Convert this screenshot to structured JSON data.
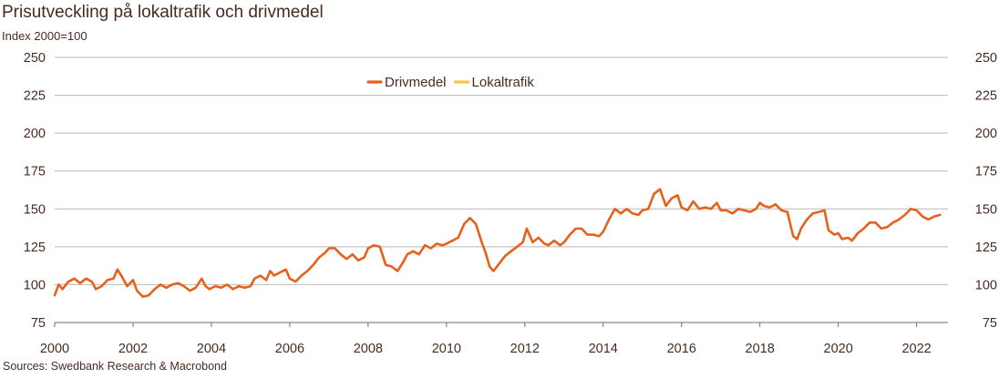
{
  "header": {
    "title": "Prisutveckling på lokaltrafik och drivmedel",
    "subtitle": "Index 2000=100"
  },
  "footer": {
    "source": "Sources: Swedbank Research & Macrobond"
  },
  "colors": {
    "drivmedel": "#e8601c",
    "lokaltrafik": "#f6c73f",
    "grid": "#b9b9b9",
    "text": "#4a2a1f"
  },
  "chart_data": {
    "type": "line",
    "title": "Prisutveckling på lokaltrafik och drivmedel",
    "ylabel": "Index 2000=100",
    "xlim": [
      2000,
      2022.8
    ],
    "ylim": [
      75,
      250
    ],
    "y_ticks": [
      "75",
      "100",
      "125",
      "150",
      "175",
      "200",
      "225",
      "250"
    ],
    "x_ticks": [
      "2000",
      "2002",
      "2004",
      "2006",
      "2008",
      "2010",
      "2012",
      "2014",
      "2016",
      "2018",
      "2020",
      "2022"
    ],
    "grid": true,
    "legend_position": "top-center",
    "series": [
      {
        "name": "Drivmedel",
        "color": "#e8601c",
        "points": [
          [
            2000.0,
            93
          ],
          [
            2000.1,
            100
          ],
          [
            2000.2,
            97
          ],
          [
            2000.35,
            102
          ],
          [
            2000.5,
            104
          ],
          [
            2000.65,
            101
          ],
          [
            2000.8,
            104
          ],
          [
            2000.95,
            102
          ],
          [
            2001.05,
            97
          ],
          [
            2001.2,
            99
          ],
          [
            2001.35,
            103
          ],
          [
            2001.5,
            104
          ],
          [
            2001.6,
            110
          ],
          [
            2001.7,
            106
          ],
          [
            2001.85,
            99
          ],
          [
            2002.0,
            103
          ],
          [
            2002.1,
            96
          ],
          [
            2002.25,
            92
          ],
          [
            2002.4,
            93
          ],
          [
            2002.55,
            97
          ],
          [
            2002.7,
            100
          ],
          [
            2002.85,
            98
          ],
          [
            2003.0,
            100
          ],
          [
            2003.15,
            101
          ],
          [
            2003.3,
            99
          ],
          [
            2003.45,
            96
          ],
          [
            2003.6,
            98
          ],
          [
            2003.75,
            104
          ],
          [
            2003.85,
            99
          ],
          [
            2003.95,
            97
          ],
          [
            2004.1,
            99
          ],
          [
            2004.25,
            98
          ],
          [
            2004.4,
            100
          ],
          [
            2004.55,
            97
          ],
          [
            2004.7,
            99
          ],
          [
            2004.85,
            98
          ],
          [
            2005.0,
            99
          ],
          [
            2005.1,
            104
          ],
          [
            2005.25,
            106
          ],
          [
            2005.4,
            103
          ],
          [
            2005.5,
            109
          ],
          [
            2005.6,
            106
          ],
          [
            2005.75,
            108
          ],
          [
            2005.9,
            110
          ],
          [
            2006.0,
            104
          ],
          [
            2006.15,
            102
          ],
          [
            2006.3,
            106
          ],
          [
            2006.45,
            109
          ],
          [
            2006.6,
            113
          ],
          [
            2006.75,
            118
          ],
          [
            2006.9,
            121
          ],
          [
            2007.0,
            124
          ],
          [
            2007.15,
            124
          ],
          [
            2007.3,
            120
          ],
          [
            2007.45,
            117
          ],
          [
            2007.6,
            120
          ],
          [
            2007.75,
            116
          ],
          [
            2007.9,
            118
          ],
          [
            2008.0,
            124
          ],
          [
            2008.15,
            126
          ],
          [
            2008.3,
            125
          ],
          [
            2008.45,
            113
          ],
          [
            2008.6,
            112
          ],
          [
            2008.75,
            109
          ],
          [
            2008.9,
            115
          ],
          [
            2009.0,
            120
          ],
          [
            2009.15,
            122
          ],
          [
            2009.3,
            120
          ],
          [
            2009.45,
            126
          ],
          [
            2009.6,
            124
          ],
          [
            2009.75,
            127
          ],
          [
            2009.9,
            126
          ],
          [
            2010.0,
            127
          ],
          [
            2010.15,
            129
          ],
          [
            2010.3,
            131
          ],
          [
            2010.45,
            140
          ],
          [
            2010.6,
            144
          ],
          [
            2010.75,
            140
          ],
          [
            2010.9,
            128
          ],
          [
            2011.0,
            121
          ],
          [
            2011.1,
            112
          ],
          [
            2011.2,
            109
          ],
          [
            2011.35,
            114
          ],
          [
            2011.5,
            119
          ],
          [
            2011.65,
            122
          ],
          [
            2011.8,
            125
          ],
          [
            2011.95,
            128
          ],
          [
            2012.05,
            137
          ],
          [
            2012.2,
            128
          ],
          [
            2012.35,
            131
          ],
          [
            2012.5,
            127
          ],
          [
            2012.6,
            126
          ],
          [
            2012.75,
            129
          ],
          [
            2012.9,
            126
          ],
          [
            2013.0,
            128
          ],
          [
            2013.15,
            133
          ],
          [
            2013.3,
            137
          ],
          [
            2013.45,
            137
          ],
          [
            2013.6,
            133
          ],
          [
            2013.75,
            133
          ],
          [
            2013.9,
            132
          ],
          [
            2014.0,
            135
          ],
          [
            2014.15,
            143
          ],
          [
            2014.3,
            150
          ],
          [
            2014.45,
            147
          ],
          [
            2014.6,
            150
          ],
          [
            2014.75,
            147
          ],
          [
            2014.9,
            146
          ],
          [
            2015.0,
            149
          ],
          [
            2015.15,
            150
          ],
          [
            2015.3,
            160
          ],
          [
            2015.45,
            163
          ],
          [
            2015.6,
            152
          ],
          [
            2015.75,
            157
          ],
          [
            2015.9,
            159
          ],
          [
            2016.0,
            151
          ],
          [
            2016.15,
            149
          ],
          [
            2016.3,
            155
          ],
          [
            2016.45,
            150
          ],
          [
            2016.6,
            151
          ],
          [
            2016.75,
            150
          ],
          [
            2016.9,
            154
          ],
          [
            2017.0,
            149
          ],
          [
            2017.15,
            149
          ],
          [
            2017.3,
            147
          ],
          [
            2017.45,
            150
          ],
          [
            2017.6,
            149
          ],
          [
            2017.75,
            148
          ],
          [
            2017.9,
            150
          ],
          [
            2018.0,
            154
          ],
          [
            2018.1,
            152
          ],
          [
            2018.25,
            151
          ],
          [
            2018.4,
            153
          ],
          [
            2018.55,
            149
          ],
          [
            2018.7,
            148
          ],
          [
            2018.85,
            132
          ],
          [
            2018.95,
            130
          ],
          [
            2019.05,
            137
          ],
          [
            2019.2,
            143
          ],
          [
            2019.35,
            147
          ],
          [
            2019.5,
            148
          ],
          [
            2019.65,
            149
          ],
          [
            2019.75,
            136
          ],
          [
            2019.9,
            133
          ],
          [
            2020.0,
            134
          ],
          [
            2020.1,
            130
          ],
          [
            2020.25,
            131
          ],
          [
            2020.35,
            129
          ],
          [
            2020.5,
            134
          ],
          [
            2020.65,
            137
          ],
          [
            2020.8,
            141
          ],
          [
            2020.95,
            141
          ],
          [
            2021.1,
            137
          ],
          [
            2021.25,
            138
          ],
          [
            2021.4,
            141
          ],
          [
            2021.55,
            143
          ],
          [
            2021.7,
            146
          ],
          [
            2021.85,
            150
          ],
          [
            2022.0,
            149
          ],
          [
            2022.15,
            145
          ],
          [
            2022.3,
            143
          ],
          [
            2022.45,
            145
          ],
          [
            2022.6,
            146
          ]
        ]
      },
      {
        "name": "Lokaltrafik",
        "color": "#f6c73f",
        "points": []
      }
    ]
  }
}
